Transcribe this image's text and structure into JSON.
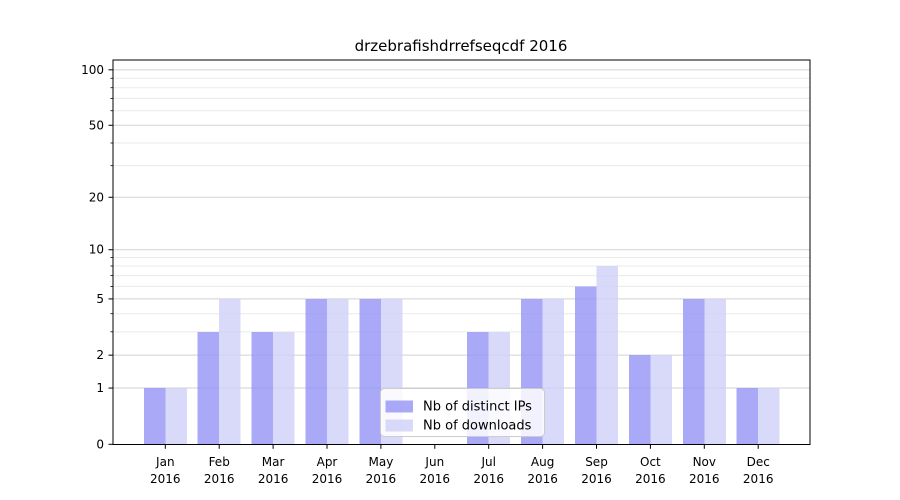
{
  "title": "drzebrafishdrrefseqcdf 2016",
  "legend": {
    "items": [
      {
        "label": "Nb of distinct IPs"
      },
      {
        "label": "Nb of downloads"
      }
    ]
  },
  "chart_data": {
    "type": "bar",
    "title": "drzebrafishdrrefseqcdf 2016",
    "yscale": "log1p",
    "ylim": [
      0,
      113
    ],
    "yticks": [
      0,
      1,
      2,
      5,
      10,
      20,
      50,
      100
    ],
    "yticks_minor": [
      3,
      4,
      6,
      7,
      8,
      9,
      30,
      40,
      60,
      70,
      80,
      90
    ],
    "grid": true,
    "x_tick_year": "2016",
    "categories": [
      "Jan",
      "Feb",
      "Mar",
      "Apr",
      "May",
      "Jun",
      "Jul",
      "Aug",
      "Sep",
      "Oct",
      "Nov",
      "Dec"
    ],
    "series": [
      {
        "name": "Nb of distinct IPs",
        "color": "#9393f6",
        "values": [
          1,
          3,
          3,
          5,
          5,
          0,
          3,
          5,
          6,
          2,
          5,
          1
        ]
      },
      {
        "name": "Nb of downloads",
        "color": "#cfcff8",
        "values": [
          1,
          5,
          3,
          5,
          5,
          0,
          3,
          5,
          8,
          2,
          5,
          1
        ]
      }
    ],
    "bar_alpha": 0.8,
    "legend_position": "lower center",
    "colors": {
      "grid_major": "#d2d2d2",
      "grid_minor": "#eaeaea",
      "spine": "#000000",
      "legend_border": "#cccccc",
      "legend_bg": "#ffffff"
    }
  }
}
